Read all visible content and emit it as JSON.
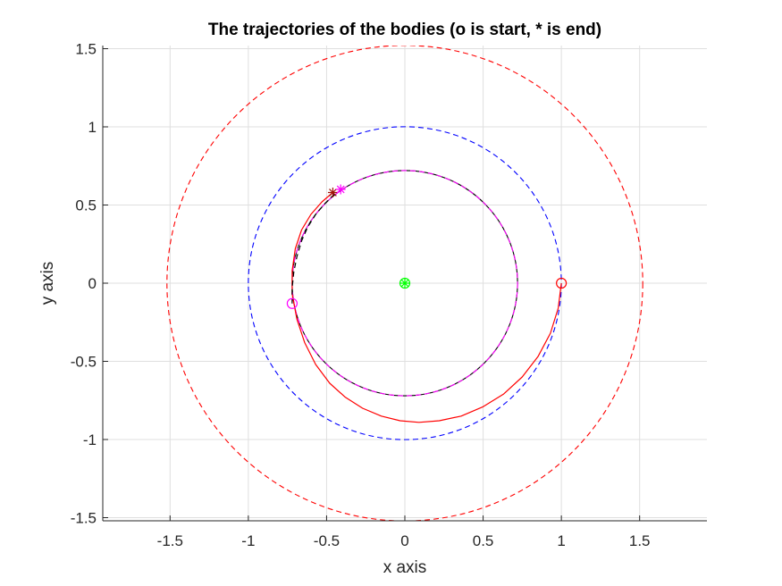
{
  "chart_data": {
    "type": "line",
    "title": "The trajectories of the bodies (o is start, * is end)",
    "xlabel": "x axis",
    "ylabel": "y axis",
    "xlim": [
      -1.93,
      1.93
    ],
    "ylim": [
      -1.52,
      1.52
    ],
    "xticks": [
      -1.5,
      -1,
      -0.5,
      0,
      0.5,
      1,
      1.5
    ],
    "yticks": [
      -1.5,
      -1,
      -0.5,
      0,
      0.5,
      1,
      1.5
    ],
    "xtick_labels": [
      "-1.5",
      "-1",
      "-0.5",
      "0",
      "0.5",
      "1",
      "1.5"
    ],
    "ytick_labels": [
      "-1.5",
      "-1",
      "-0.5",
      "0",
      "0.5",
      "1",
      "1.5"
    ],
    "grid": true,
    "colors": {
      "red": "#ff0000",
      "blue": "#0000ff",
      "black": "#000000",
      "magenta": "#ff00ff",
      "green": "#00ff00",
      "dark_red": "#a0140a"
    },
    "circles": [
      {
        "center": [
          0,
          0
        ],
        "radius": 1.52,
        "color": "#ff0000",
        "style": "dashed"
      },
      {
        "center": [
          0,
          0
        ],
        "radius": 1.0,
        "color": "#0000ff",
        "style": "dashed"
      },
      {
        "center": [
          0,
          0
        ],
        "radius": 0.72,
        "color": "#000000",
        "style": "solid"
      },
      {
        "center": [
          0,
          0
        ],
        "radius": 0.72,
        "color": "#ff00ff",
        "style": "dashed"
      }
    ],
    "series": [
      {
        "color": "#ff0000",
        "style": "solid",
        "x": [
          1.0,
          0.98,
          0.93,
          0.85,
          0.75,
          0.63,
          0.5,
          0.36,
          0.22,
          0.09,
          -0.03,
          -0.15,
          -0.27,
          -0.38,
          -0.48,
          -0.57,
          -0.64,
          -0.69,
          -0.72,
          -0.72,
          -0.7,
          -0.66,
          -0.6,
          -0.53,
          -0.46
        ],
        "y": [
          0.0,
          -0.16,
          -0.32,
          -0.47,
          -0.6,
          -0.71,
          -0.79,
          -0.85,
          -0.88,
          -0.89,
          -0.88,
          -0.85,
          -0.8,
          -0.73,
          -0.64,
          -0.52,
          -0.38,
          -0.23,
          -0.07,
          0.08,
          0.22,
          0.34,
          0.44,
          0.52,
          0.58
        ]
      },
      {
        "color": "#000000",
        "style": "dashed",
        "x": [
          -0.72,
          -0.72,
          -0.71,
          -0.69,
          -0.66,
          -0.62,
          -0.57,
          -0.51,
          -0.45
        ],
        "y": [
          -0.13,
          -0.03,
          0.07,
          0.17,
          0.27,
          0.36,
          0.44,
          0.51,
          0.57
        ]
      }
    ],
    "markers": [
      {
        "x": 1.0,
        "y": 0.0,
        "symbol": "o",
        "color": "#ff0000"
      },
      {
        "x": -0.72,
        "y": -0.13,
        "symbol": "o",
        "color": "#ff00ff"
      },
      {
        "x": 0.0,
        "y": 0.0,
        "symbol": "o",
        "color": "#00ff00"
      },
      {
        "x": 0.0,
        "y": 0.0,
        "symbol": "*",
        "color": "#00ff00"
      },
      {
        "x": -0.46,
        "y": 0.58,
        "symbol": "*",
        "color": "#a0140a"
      },
      {
        "x": -0.41,
        "y": 0.6,
        "symbol": "*",
        "color": "#ff00ff"
      }
    ]
  }
}
